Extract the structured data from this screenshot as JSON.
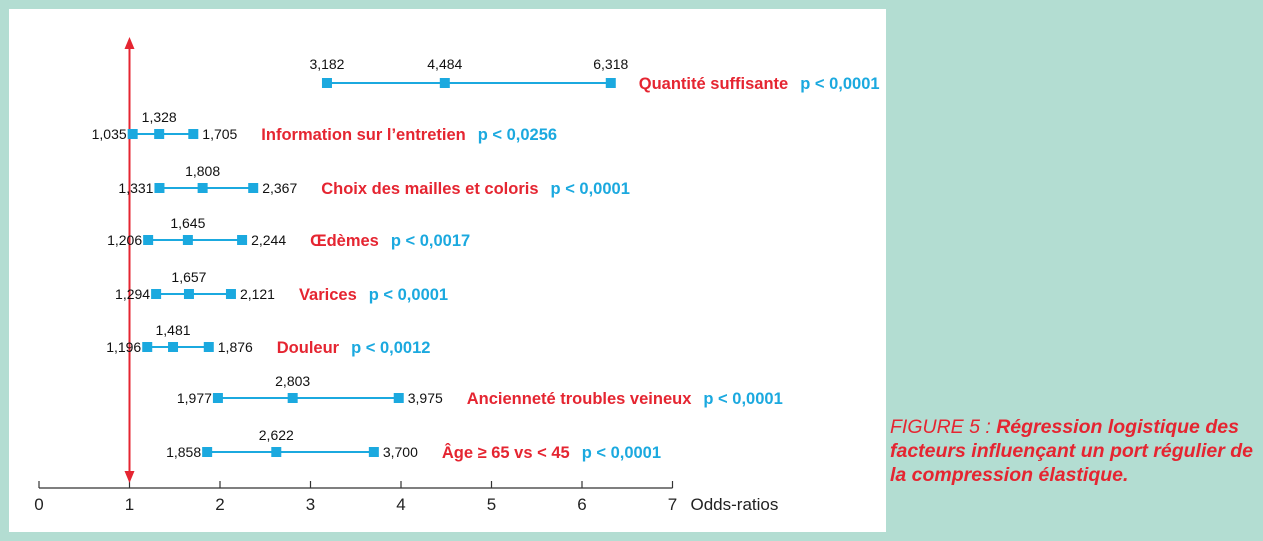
{
  "chart_data": {
    "type": "forest",
    "xlabel": "Odds-ratios",
    "xlim": [
      0,
      7
    ],
    "x_ticks": [
      0,
      1,
      2,
      3,
      4,
      5,
      6,
      7
    ],
    "tick_labels": [
      "0",
      "1",
      "2",
      "3",
      "4",
      "5",
      "6",
      "7"
    ],
    "reference_line": 1,
    "rows": [
      {
        "factor": "Quantité suffisante",
        "p": "p < 0,0001",
        "low": 3.182,
        "mid": 4.484,
        "high": 6.318,
        "low_label": "3,182",
        "mid_label": "4,484",
        "high_label": "6,318"
      },
      {
        "factor": "Information sur l’entretien",
        "p": "p < 0,0256",
        "low": 1.035,
        "mid": 1.328,
        "high": 1.705,
        "low_label": "1,035",
        "mid_label": "1,328",
        "high_label": "1,705"
      },
      {
        "factor": "Choix des mailles et coloris",
        "p": "p < 0,0001",
        "low": 1.331,
        "mid": 1.808,
        "high": 2.367,
        "low_label": "1,331",
        "mid_label": "1,808",
        "high_label": "2,367"
      },
      {
        "factor": "Œdèmes",
        "p": "p < 0,0017",
        "low": 1.206,
        "mid": 1.645,
        "high": 2.244,
        "low_label": "1,206",
        "mid_label": "1,645",
        "high_label": "2,244"
      },
      {
        "factor": "Varices",
        "p": "p < 0,0001",
        "low": 1.294,
        "mid": 1.657,
        "high": 2.121,
        "low_label": "1,294",
        "mid_label": "1,657",
        "high_label": "2,121"
      },
      {
        "factor": "Douleur",
        "p": "p < 0,0012",
        "low": 1.196,
        "mid": 1.481,
        "high": 1.876,
        "low_label": "1,196",
        "mid_label": "1,481",
        "high_label": "1,876"
      },
      {
        "factor": "Ancienneté troubles veineux",
        "p": "p < 0,0001",
        "low": 1.977,
        "mid": 2.803,
        "high": 3.975,
        "low_label": "1,977",
        "mid_label": "2,803",
        "high_label": "3,975"
      },
      {
        "factor": "Âge ≥ 65 vs < 45",
        "p": "p < 0,0001",
        "low": 1.858,
        "mid": 2.622,
        "high": 3.7,
        "low_label": "1,858",
        "mid_label": "2,622",
        "high_label": "3,700"
      }
    ],
    "colors": {
      "series": "#1ba9df",
      "factor_text": "#e52531",
      "reference_line": "#e52531",
      "axis": "#333333"
    }
  },
  "caption": {
    "label": "FIGURE 5 :",
    "text": "Régression logistique des facteurs influençant un port régulier de la compression élastique."
  }
}
